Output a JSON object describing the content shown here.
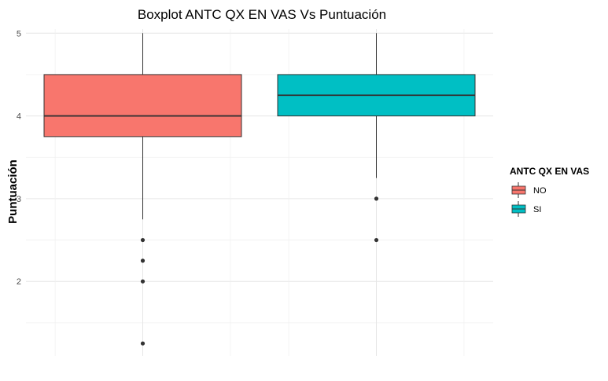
{
  "chart_data": {
    "type": "boxplot",
    "title": "Boxplot ANTC QX EN VAS Vs Puntuación",
    "xlabel": "",
    "ylabel": "Puntuación",
    "ylim": [
      1.1,
      5.05
    ],
    "yticks": [
      2,
      3,
      4,
      5
    ],
    "ytick_labels": [
      "2",
      "3",
      "4",
      "5"
    ],
    "grid": true,
    "legend": {
      "title": "ANTC QX EN VAS",
      "position": "right"
    },
    "groups": [
      {
        "name": "NO",
        "color": "#F8766D",
        "whisker_low": 2.75,
        "q1": 3.75,
        "median": 4.0,
        "q3": 4.5,
        "whisker_high": 5.0,
        "outliers": [
          2.5,
          2.25,
          2.0,
          1.25
        ]
      },
      {
        "name": "SI",
        "color": "#00BFC4",
        "whisker_low": 3.25,
        "q1": 4.0,
        "median": 4.25,
        "q3": 4.5,
        "whisker_high": 5.0,
        "outliers": [
          3.0,
          2.5
        ]
      }
    ]
  }
}
